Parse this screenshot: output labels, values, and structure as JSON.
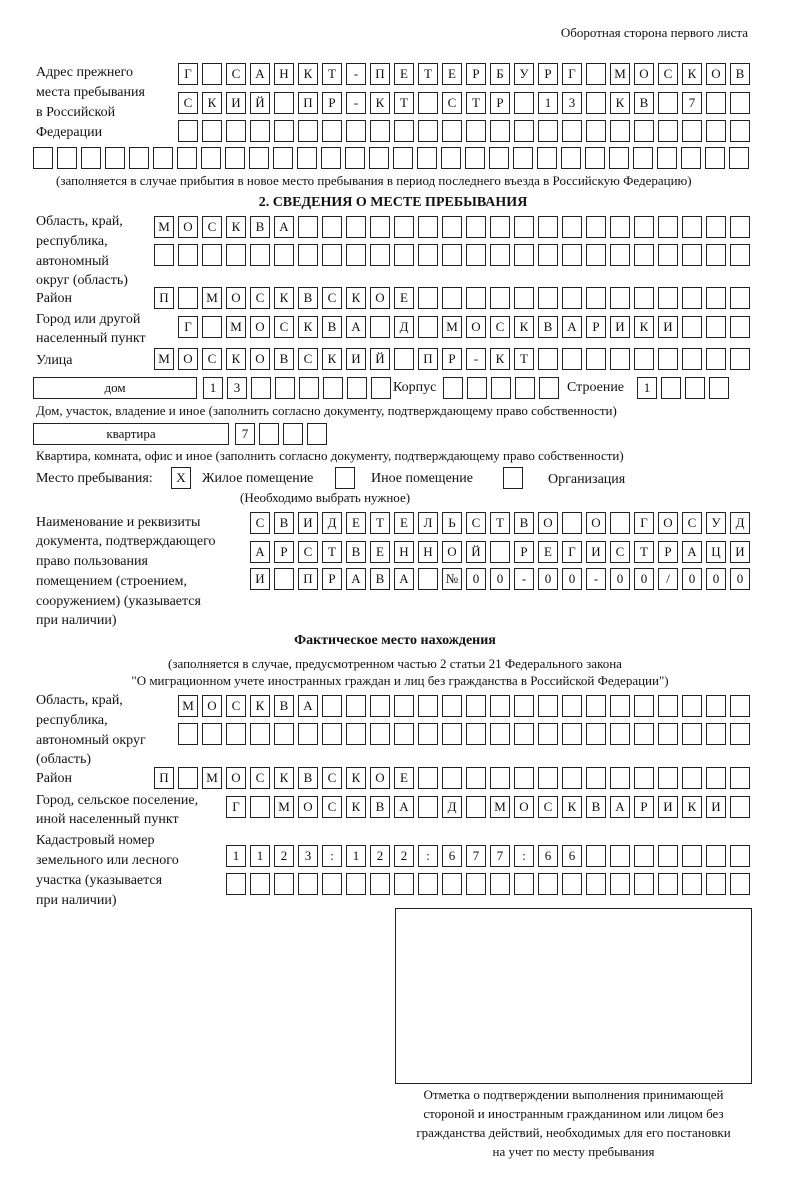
{
  "header": "Оборотная сторона первого листа",
  "previous_address": {
    "label": [
      "Адрес прежнего",
      "места пребывания",
      "в Российской",
      "Федерации"
    ],
    "rows": [
      "Г САНКТ-ПЕТЕРБУРГ МОСКОВ",
      "СКИЙ ПР-КТ СТР 13 КВ 7  ",
      "                        ",
      "                              "
    ],
    "note": "(заполняется в случае прибытия в новое место пребывания в период последнего въезда в Российскую Федерацию)"
  },
  "section2_title": "2. СВЕДЕНИЯ О МЕСТЕ ПРЕБЫВАНИЯ",
  "stay": {
    "region_label": [
      "Область, край,",
      "республика,",
      "автономный",
      "округ (область)"
    ],
    "region_rows": [
      "МОСКВА                   ",
      "                         "
    ],
    "district_label": "Район",
    "district_row": "П МОСКВСКОЕ              ",
    "city_label": [
      "Город или другой",
      "населенный пункт"
    ],
    "city_row": "Г МОСКВА Д МОСКВАРИКИ   ",
    "street_label": "Улица",
    "street_row": "МОСКОВСКИЙ ПР-КТ         ",
    "house_type": "дом",
    "house_row": "13      ",
    "korpus_label": "Корпус",
    "korpus_row": "     ",
    "building_label": "Строение",
    "building_row": "1   ",
    "house_note": "Дом, участок, владение и иное (заполнить согласно документу, подтверждающему право собственности)",
    "flat_type": "квартира",
    "flat_row": "7   ",
    "flat_note": "Квартира, комната, офис и иное (заполнить согласно документу, подтверждающему право собственности)",
    "place_label": "Место пребывания:",
    "place_options": [
      {
        "label": "Жилое помещение",
        "mark": "X"
      },
      {
        "label": "Иное помещение",
        "mark": ""
      },
      {
        "label": "Организация",
        "mark": ""
      }
    ],
    "place_note": "(Необходимо выбрать нужное)",
    "doc_label": [
      "Наименование и реквизиты",
      "документа, подтверждающего",
      "право пользования",
      "помещением (строением,",
      "сооружением) (указывается",
      "при наличии)"
    ],
    "doc_rows": [
      "СВИДЕТЕЛЬСТВО О ГОСУД",
      "АРСТВЕННОЙ РЕГИСТРАЦИ",
      "И ПРАВА №00-00-00/000"
    ]
  },
  "actual": {
    "title": "Фактическое место нахождения",
    "subtitle": [
      "(заполняется в случае, предусмотренном частью 2 статьи 21 Федерального закона",
      "\"О миграционном учете иностранных граждан и лиц без гражданства в Российской Федерации\")"
    ],
    "region_label": [
      "Область, край,",
      "республика,",
      "автономный округ",
      "(область)"
    ],
    "region_rows": [
      "МОСКВА                  ",
      "                        "
    ],
    "district_label": "Район",
    "district_row": "П МОСКВСКОЕ              ",
    "city_label": [
      "Город, сельское поселение,",
      "иной населенный пункт"
    ],
    "city_row": "Г МОСКВА Д МОСКВАРИКИ ",
    "cadastre_label": [
      "Кадастровый номер",
      "земельного или лесного",
      "участка (указывается",
      "при наличии)"
    ],
    "cadastre_rows": [
      "1123:122:677:66       ",
      "                      "
    ]
  },
  "confirmation_caption": [
    "Отметка о подтверждении выполнения принимающей",
    "стороной и иностранным гражданином или лицом без",
    "гражданства действий, необходимых для его постановки",
    "на учет по месту пребывания"
  ]
}
